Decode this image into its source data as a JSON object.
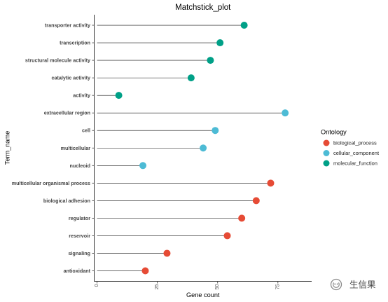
{
  "chart_data": {
    "type": "bar",
    "orientation": "horizontal",
    "title": "Matchstick_plot",
    "xlabel": "Gene count",
    "ylabel": "Term_name",
    "xlim": [
      -1.2,
      89
    ],
    "xticks": [
      0,
      25,
      50,
      75
    ],
    "grid": false,
    "legend": "right",
    "legend_title": "Ontology",
    "series": [
      {
        "name": "biological_process",
        "color": "#E64B35",
        "categories": [
          "multicellular organismal process",
          "biological adhesion",
          "regulator",
          "reservoir",
          "signaling",
          "antioxidant"
        ],
        "values": [
          72,
          66,
          60,
          54,
          29,
          20
        ]
      },
      {
        "name": "cellular_component",
        "color": "#4DBBD5",
        "categories": [
          "extracellular region",
          "cell",
          "multicellular",
          "nucleoid"
        ],
        "values": [
          78,
          49,
          44,
          19
        ]
      },
      {
        "name": "molecular_function",
        "color": "#00A087",
        "categories": [
          "transporter activity",
          "transcription",
          "structural molecule activity",
          "catalytic activity",
          "activity"
        ],
        "values": [
          61,
          51,
          47,
          39,
          9
        ]
      }
    ]
  },
  "watermark": {
    "text": "生信果",
    "icon": "wechat-logo-icon"
  }
}
